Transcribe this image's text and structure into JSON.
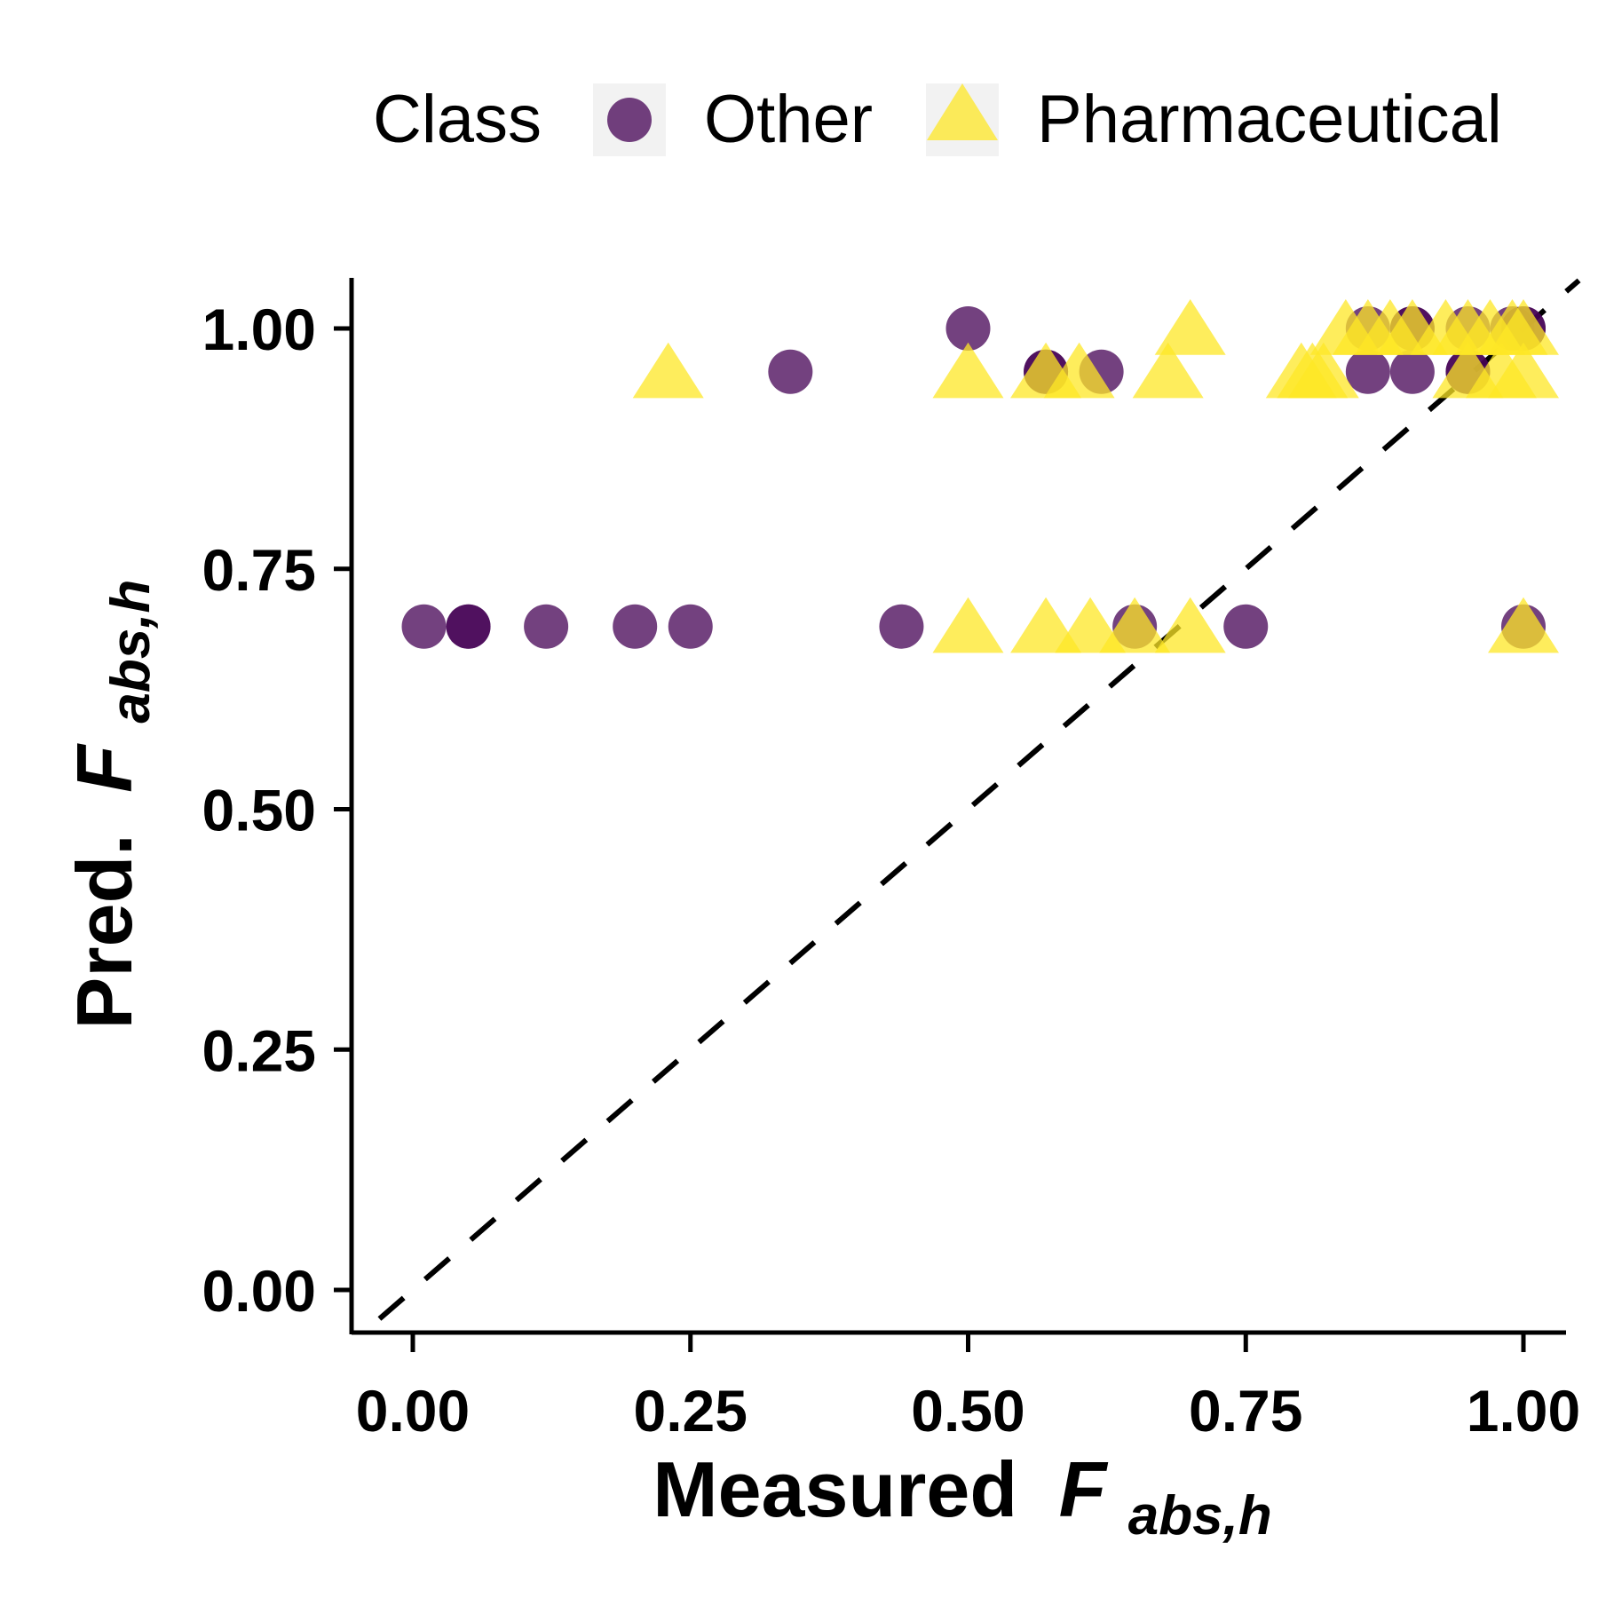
{
  "chart_data": {
    "type": "scatter",
    "xlabel": {
      "prefix": "Measured",
      "symbol": "F",
      "subscript": "abs,h"
    },
    "ylabel": {
      "prefix": "Pred.",
      "symbol": "F",
      "subscript": "abs,h"
    },
    "xlim": [
      -0.03,
      1.05
    ],
    "ylim": [
      -0.03,
      1.05
    ],
    "x_ticks": [
      "0.00",
      "0.25",
      "0.50",
      "0.75",
      "1.00"
    ],
    "y_ticks": [
      "0.00",
      "0.25",
      "0.50",
      "0.75",
      "1.00"
    ],
    "reference_line": {
      "type": "identity",
      "style": "dashed",
      "color": "#000000"
    },
    "legend": {
      "title": "Class",
      "placement": "top"
    },
    "grid": false,
    "series": [
      {
        "name": "Other",
        "marker": "circle",
        "color": "#440154",
        "points": [
          {
            "x": 0.01,
            "y": 0.69
          },
          {
            "x": 0.05,
            "y": 0.69
          },
          {
            "x": 0.05,
            "y": 0.69
          },
          {
            "x": 0.12,
            "y": 0.69
          },
          {
            "x": 0.2,
            "y": 0.69
          },
          {
            "x": 0.25,
            "y": 0.69
          },
          {
            "x": 0.44,
            "y": 0.69
          },
          {
            "x": 0.65,
            "y": 0.69
          },
          {
            "x": 0.75,
            "y": 0.69
          },
          {
            "x": 1.0,
            "y": 0.69
          },
          {
            "x": 0.34,
            "y": 0.955
          },
          {
            "x": 0.57,
            "y": 0.955
          },
          {
            "x": 0.57,
            "y": 0.955
          },
          {
            "x": 0.62,
            "y": 0.955
          },
          {
            "x": 0.86,
            "y": 0.955
          },
          {
            "x": 0.9,
            "y": 0.955
          },
          {
            "x": 0.95,
            "y": 0.955
          },
          {
            "x": 0.95,
            "y": 0.955
          },
          {
            "x": 0.5,
            "y": 1.0
          },
          {
            "x": 0.86,
            "y": 1.0
          },
          {
            "x": 0.9,
            "y": 1.0
          },
          {
            "x": 0.9,
            "y": 1.0
          },
          {
            "x": 0.95,
            "y": 1.0
          },
          {
            "x": 0.99,
            "y": 1.0
          },
          {
            "x": 1.0,
            "y": 1.0
          },
          {
            "x": 1.0,
            "y": 1.0
          }
        ]
      },
      {
        "name": "Pharmaceutical",
        "marker": "triangle",
        "color": "#FDE725",
        "points": [
          {
            "x": 0.23,
            "y": 0.955
          },
          {
            "x": 0.5,
            "y": 0.955
          },
          {
            "x": 0.57,
            "y": 0.955
          },
          {
            "x": 0.6,
            "y": 0.955
          },
          {
            "x": 0.68,
            "y": 0.955
          },
          {
            "x": 0.8,
            "y": 0.955
          },
          {
            "x": 0.81,
            "y": 0.955
          },
          {
            "x": 0.82,
            "y": 0.955
          },
          {
            "x": 0.95,
            "y": 0.955
          },
          {
            "x": 0.98,
            "y": 0.955
          },
          {
            "x": 1.0,
            "y": 0.955
          },
          {
            "x": 0.7,
            "y": 1.0
          },
          {
            "x": 0.84,
            "y": 1.0
          },
          {
            "x": 0.86,
            "y": 1.0
          },
          {
            "x": 0.88,
            "y": 1.0
          },
          {
            "x": 0.9,
            "y": 1.0
          },
          {
            "x": 0.93,
            "y": 1.0
          },
          {
            "x": 0.95,
            "y": 1.0
          },
          {
            "x": 0.97,
            "y": 1.0
          },
          {
            "x": 0.99,
            "y": 1.0
          },
          {
            "x": 1.0,
            "y": 1.0
          },
          {
            "x": 0.5,
            "y": 0.69
          },
          {
            "x": 0.57,
            "y": 0.69
          },
          {
            "x": 0.61,
            "y": 0.69
          },
          {
            "x": 0.65,
            "y": 0.69
          },
          {
            "x": 0.7,
            "y": 0.69
          },
          {
            "x": 1.0,
            "y": 0.69
          }
        ]
      }
    ]
  }
}
